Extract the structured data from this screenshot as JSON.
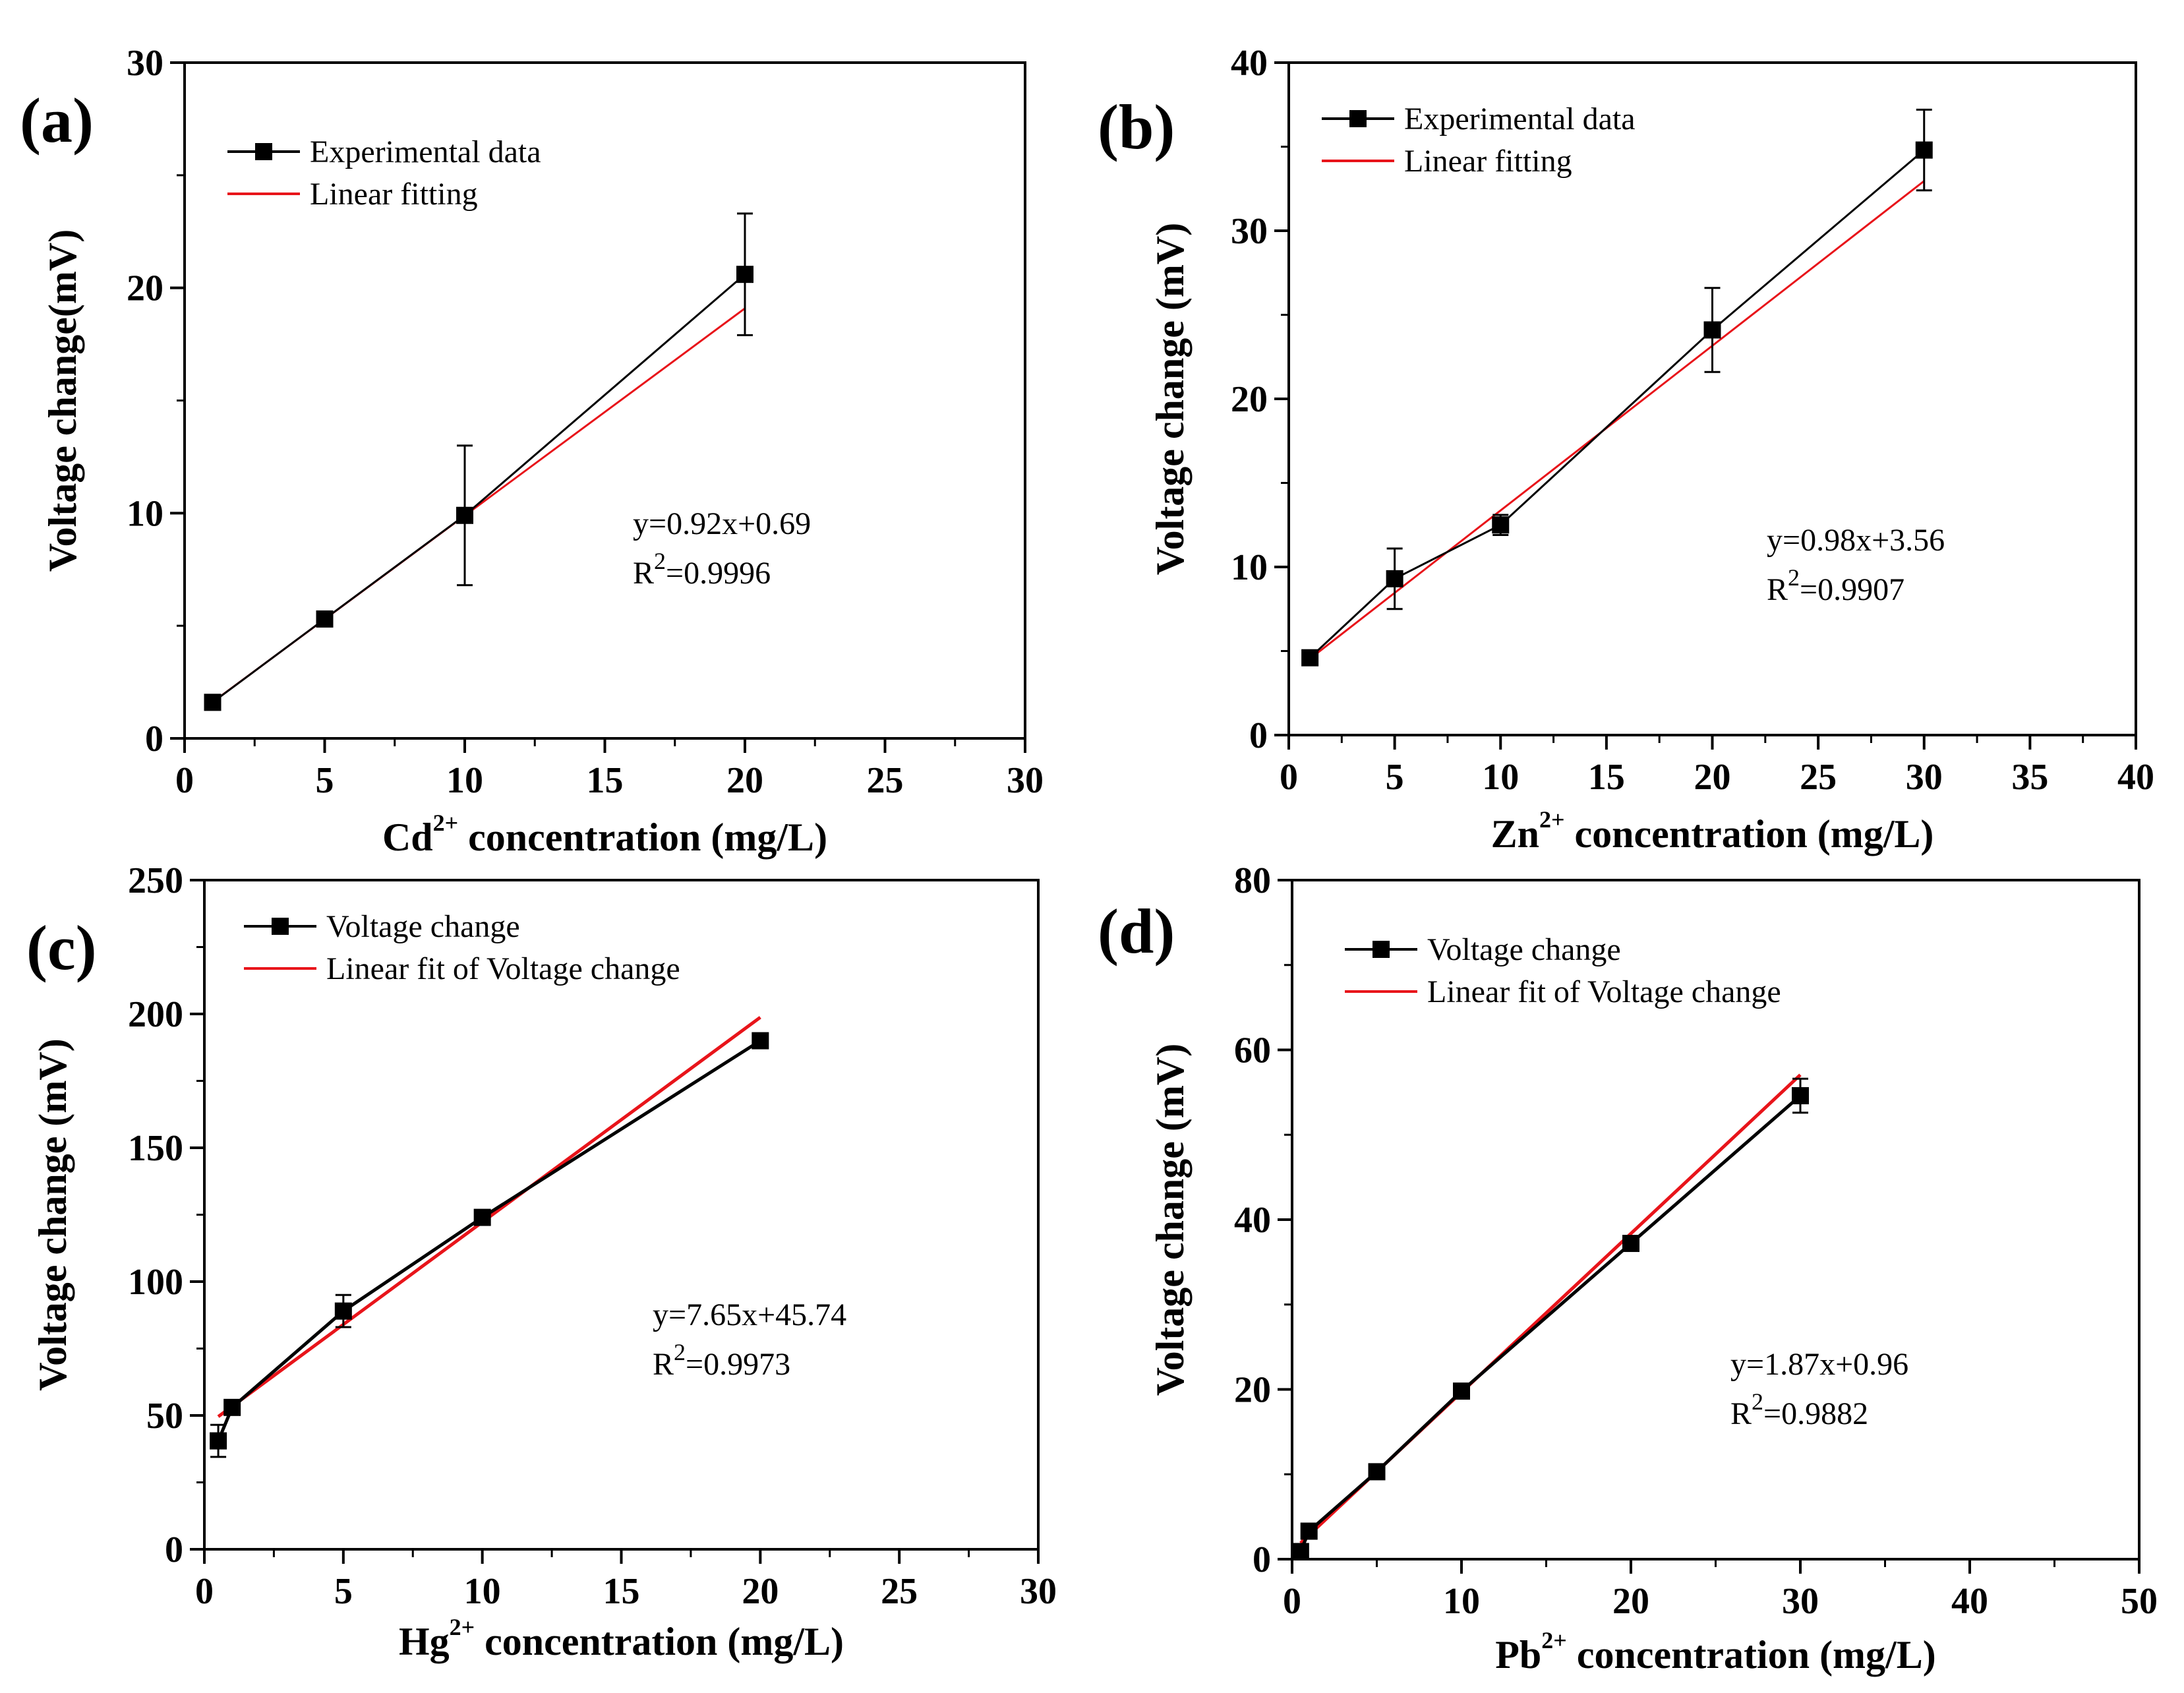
{
  "chart_data": [
    {
      "panel": "(a)",
      "type": "line",
      "xlabel": "Cd",
      "xlabel_sup": "2+",
      "xlabel_rest": " concentration (mg/L)",
      "ylabel": "Voltage change(mV)",
      "xlim": [
        0,
        30
      ],
      "ylim": [
        0,
        30
      ],
      "xticks": [
        0,
        5,
        10,
        15,
        20,
        25,
        30
      ],
      "yticks": [
        0,
        10,
        20,
        30
      ],
      "experimental": {
        "name": "Experimental data",
        "x": [
          1,
          5,
          10,
          20
        ],
        "y": [
          1.6,
          5.3,
          9.9,
          20.6
        ],
        "err": [
          0,
          0,
          3.1,
          2.7
        ]
      },
      "fit": {
        "name": "Linear fitting",
        "slope": 0.92,
        "intercept": 0.69,
        "xrange": [
          1,
          20
        ]
      },
      "equation": "y=0.92x+0.69",
      "r2_label": "R",
      "r2_sup": "2",
      "r2_value": "=0.9996",
      "legend_position": "top-left"
    },
    {
      "panel": "(b)",
      "type": "line",
      "xlabel": "Zn",
      "xlabel_sup": "2+",
      "xlabel_rest": " concentration (mg/L)",
      "ylabel": "Voltage change (mV)",
      "xlim": [
        0,
        40
      ],
      "ylim": [
        0,
        40
      ],
      "xticks": [
        0,
        5,
        10,
        15,
        20,
        25,
        30,
        35,
        40
      ],
      "yticks": [
        0,
        10,
        20,
        30,
        40
      ],
      "experimental": {
        "name": "Experimental data",
        "x": [
          1,
          5,
          10,
          20,
          30
        ],
        "y": [
          4.6,
          9.3,
          12.5,
          24.1,
          34.8
        ],
        "err": [
          0,
          1.8,
          0.6,
          2.5,
          2.4
        ]
      },
      "fit": {
        "name": "Linear fitting",
        "slope": 0.98,
        "intercept": 3.56,
        "xrange": [
          1,
          30
        ]
      },
      "equation": "y=0.98x+3.56",
      "r2_label": "R",
      "r2_sup": "2",
      "r2_value": "=0.9907",
      "legend_position": "top-left"
    },
    {
      "panel": "(c)",
      "type": "line",
      "xlabel": "Hg",
      "xlabel_sup": "2+",
      "xlabel_rest": " concentration (mg/L)",
      "ylabel": "Voltage change (mV)",
      "xlim": [
        0,
        30
      ],
      "ylim": [
        0,
        250
      ],
      "xticks": [
        0,
        5,
        10,
        15,
        20,
        25,
        30
      ],
      "yticks": [
        0,
        50,
        100,
        150,
        200,
        250
      ],
      "experimental": {
        "name": "Voltage change",
        "x": [
          0.5,
          1,
          5,
          10,
          20
        ],
        "y": [
          40.5,
          53,
          89,
          124,
          190
        ],
        "err": [
          6,
          0,
          6,
          0,
          0
        ]
      },
      "fit": {
        "name": "Linear fit of Voltage change",
        "slope": 7.65,
        "intercept": 45.74,
        "xrange": [
          0.5,
          20
        ]
      },
      "equation": "y=7.65x+45.74",
      "r2_label": "R",
      "r2_sup": "2",
      "r2_value": "=0.9973",
      "legend_position": "top-left"
    },
    {
      "panel": "(d)",
      "type": "line",
      "xlabel": "Pb",
      "xlabel_sup": "2+",
      "xlabel_rest": " concentration (mg/L)",
      "ylabel": "Voltage change (mV)",
      "xlim": [
        0,
        50
      ],
      "ylim": [
        0,
        80
      ],
      "xticks": [
        0,
        10,
        20,
        30,
        40,
        50
      ],
      "yticks": [
        0,
        20,
        40,
        60,
        80
      ],
      "experimental": {
        "name": "Voltage change",
        "x": [
          0.5,
          1,
          5,
          10,
          20,
          30
        ],
        "y": [
          0.9,
          3.3,
          10.3,
          19.8,
          37.2,
          54.6
        ],
        "err": [
          0,
          0,
          0,
          0,
          0,
          2.0
        ]
      },
      "fit": {
        "name": "Linear fit of Voltage change",
        "slope": 1.87,
        "intercept": 0.96,
        "xrange": [
          0.5,
          30
        ]
      },
      "equation": "y=1.87x+0.96",
      "r2_label": "R",
      "r2_sup": "2",
      "r2_value": "=0.9882",
      "legend_position": "top-left"
    }
  ],
  "colors": {
    "experimental": "#000000",
    "fit": "#e8141a"
  }
}
